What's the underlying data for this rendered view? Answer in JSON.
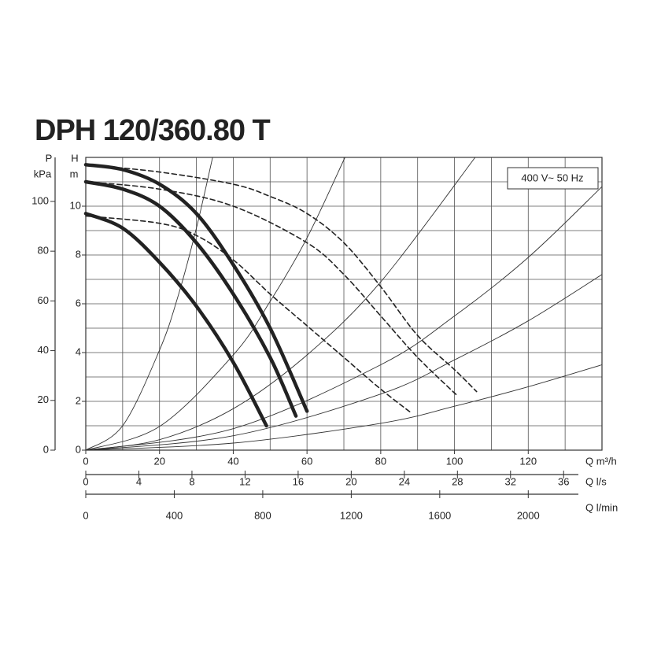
{
  "chart_data": {
    "type": "pump-curve",
    "title": "DPH 120/360.80 T",
    "title_color": "#1f6b2e",
    "annotation": "400 V~ 50 Hz",
    "yaxes": [
      {
        "label": "P",
        "unit": "kPa",
        "lim": [
          0,
          117.7
        ],
        "ticks": [
          0,
          20,
          40,
          60,
          80,
          100
        ]
      },
      {
        "label": "H",
        "unit": "m",
        "lim": [
          0,
          12
        ],
        "ticks": [
          0,
          2,
          4,
          6,
          8,
          10
        ]
      }
    ],
    "xaxes": [
      {
        "label": "Q m³/h",
        "lim": [
          0,
          140
        ],
        "ticks": [
          0,
          20,
          40,
          60,
          80,
          100,
          120
        ]
      },
      {
        "label": "Q l/s",
        "lim": [
          0,
          38.89
        ],
        "ticks": [
          0,
          4,
          8,
          12,
          16,
          20,
          24,
          28,
          32,
          36
        ]
      },
      {
        "label": "Q l/min",
        "lim": [
          0,
          2333.3
        ],
        "ticks": [
          0,
          400,
          800,
          1200,
          1600,
          2000
        ]
      }
    ],
    "xgrid": [
      0,
      10,
      20,
      30,
      40,
      50,
      60,
      70,
      80,
      90,
      100,
      110,
      120,
      130,
      140
    ],
    "ygrid": [
      0,
      1,
      2,
      3,
      4,
      5,
      6,
      7,
      8,
      9,
      10,
      11,
      12
    ],
    "series": [
      {
        "color": "#333333",
        "weight": "thin",
        "dash": false,
        "x": [
          0,
          10,
          20,
          25,
          30,
          34.4
        ],
        "values": [
          0,
          1.0,
          4.1,
          6.3,
          9.1,
          12
        ]
      },
      {
        "color": "#333333",
        "weight": "thin",
        "dash": false,
        "x": [
          0,
          20,
          40,
          50,
          60,
          70.3
        ],
        "values": [
          0,
          0.97,
          3.9,
          6.1,
          8.7,
          12
        ]
      },
      {
        "color": "#333333",
        "weight": "thin",
        "dash": false,
        "x": [
          0,
          20,
          40,
          60,
          80,
          105.6
        ],
        "values": [
          0,
          0.43,
          1.7,
          3.9,
          6.9,
          12
        ]
      },
      {
        "color": "#333333",
        "weight": "thin",
        "dash": false,
        "x": [
          0,
          40,
          80,
          100,
          120,
          140
        ],
        "values": [
          0,
          0.88,
          3.5,
          5.5,
          7.9,
          10.8
        ]
      },
      {
        "color": "#333333",
        "weight": "thin",
        "dash": false,
        "x": [
          0,
          40,
          80,
          100,
          120,
          140
        ],
        "values": [
          0,
          0.59,
          2.3,
          3.7,
          5.3,
          7.2
        ]
      },
      {
        "color": "#333333",
        "weight": "thin",
        "dash": false,
        "x": [
          0,
          40,
          80,
          100,
          120,
          140
        ],
        "values": [
          0,
          0.29,
          1.1,
          1.8,
          2.6,
          3.5
        ]
      },
      {
        "color": "#222222",
        "weight": "medium",
        "dash": true,
        "x": [
          0,
          20,
          40,
          50,
          60,
          70,
          80,
          90,
          100,
          106
        ],
        "values": [
          11.7,
          11.4,
          10.9,
          10.4,
          9.7,
          8.5,
          6.7,
          4.7,
          3.3,
          2.4
        ]
      },
      {
        "color": "#222222",
        "weight": "medium",
        "dash": true,
        "x": [
          0,
          20,
          40,
          60,
          70,
          80,
          90,
          101
        ],
        "values": [
          11.0,
          10.7,
          10.0,
          8.5,
          7.2,
          5.5,
          3.8,
          2.2
        ]
      },
      {
        "color": "#222222",
        "weight": "medium",
        "dash": true,
        "x": [
          0,
          20,
          30,
          40,
          50,
          60,
          70,
          80,
          88.5
        ],
        "values": [
          9.6,
          9.3,
          8.8,
          7.8,
          6.4,
          5.1,
          3.8,
          2.5,
          1.5
        ]
      },
      {
        "color": "#222222",
        "weight": "bold",
        "dash": false,
        "x": [
          0,
          10,
          20,
          30,
          40,
          50,
          60
        ],
        "values": [
          11.7,
          11.5,
          10.9,
          9.7,
          7.6,
          5.0,
          1.6
        ]
      },
      {
        "color": "#222222",
        "weight": "bold",
        "dash": false,
        "x": [
          0,
          10,
          20,
          30,
          40,
          50,
          57
        ],
        "values": [
          11.0,
          10.7,
          10.0,
          8.5,
          6.4,
          3.8,
          1.4
        ]
      },
      {
        "color": "#222222",
        "weight": "bold",
        "dash": false,
        "x": [
          0,
          10,
          20,
          30,
          40,
          49
        ],
        "values": [
          9.7,
          9.1,
          7.7,
          5.9,
          3.6,
          1.0
        ]
      }
    ]
  }
}
